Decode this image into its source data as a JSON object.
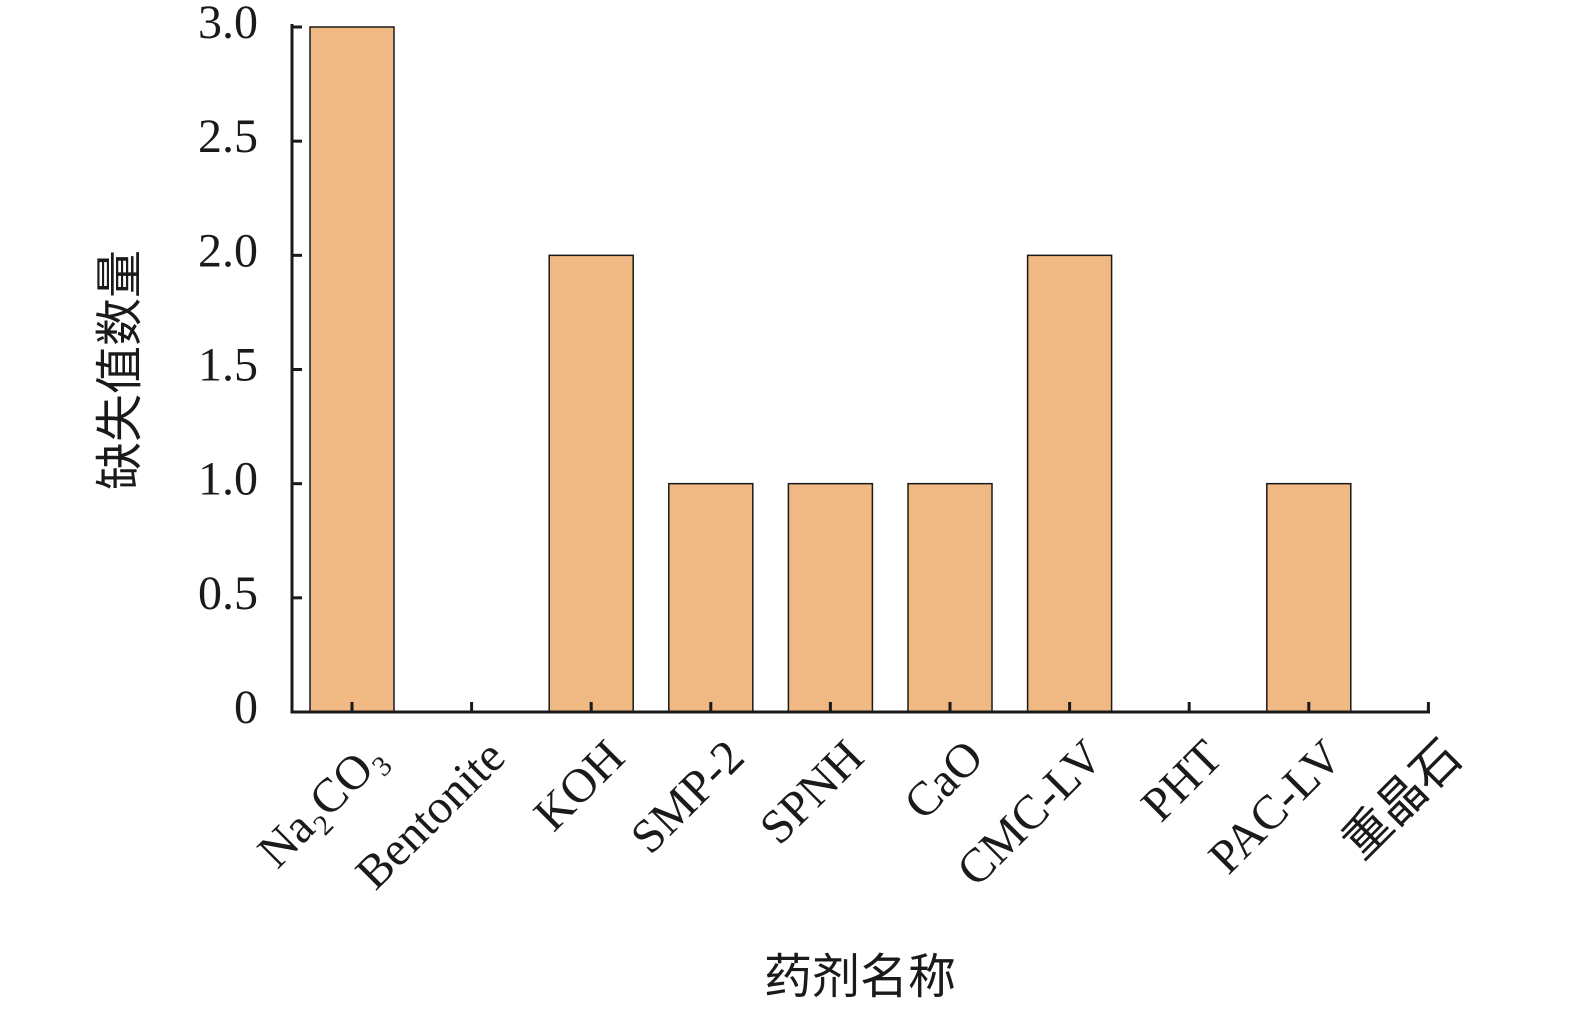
{
  "chart_data": {
    "type": "bar",
    "categories": [
      "Na₂CO₃",
      "Bentonite",
      "KOH",
      "SMP-2",
      "SPNH",
      "CaO",
      "CMC-LV",
      "PHT",
      "PAC-LV",
      "重晶石"
    ],
    "values": [
      3,
      0,
      2,
      1,
      1,
      1,
      2,
      0,
      1,
      0
    ],
    "color": "#f0b882",
    "xlabel": "药剂名称",
    "ylabel": "缺失值数量",
    "ylim": [
      0,
      3
    ],
    "yticks": [
      0,
      0.5,
      {
        "value": 1,
        "label": "1.0"
      },
      1.5,
      {
        "value": 2,
        "label": "2.0"
      },
      2.5,
      {
        "value": 3,
        "label": "3.0"
      }
    ],
    "grid": false
  }
}
